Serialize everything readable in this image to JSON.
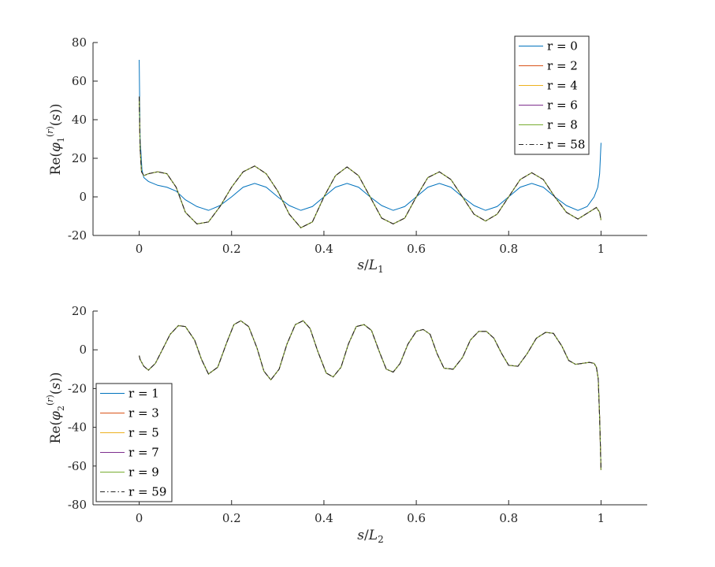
{
  "chart_data": [
    {
      "type": "line",
      "xlabel": "s/L1",
      "ylabel": "Re(φ1(r)(s))",
      "xlim": [
        -0.1,
        1.1
      ],
      "ylim": [
        -20,
        80
      ],
      "xticks": [
        0,
        0.2,
        0.4,
        0.6,
        0.8,
        1
      ],
      "xtick_labels": [
        "0",
        "0.2",
        "0.4",
        "0.6",
        "0.8",
        "1"
      ],
      "yticks": [
        -20,
        0,
        20,
        40,
        60,
        80
      ],
      "ytick_labels": [
        "-20",
        "0",
        "20",
        "40",
        "60",
        "80"
      ],
      "grid": false,
      "legend_position": "top-right",
      "series": [
        {
          "name": "r = 0",
          "color": "#0072BD",
          "dash": "solid",
          "x": [
            0,
            0.002,
            0.006,
            0.01,
            0.02,
            0.04,
            0.06,
            0.08,
            0.1,
            0.125,
            0.15,
            0.175,
            0.2,
            0.225,
            0.25,
            0.275,
            0.3,
            0.325,
            0.35,
            0.375,
            0.4,
            0.425,
            0.45,
            0.475,
            0.5,
            0.525,
            0.55,
            0.575,
            0.6,
            0.625,
            0.65,
            0.675,
            0.7,
            0.725,
            0.75,
            0.775,
            0.8,
            0.825,
            0.85,
            0.875,
            0.9,
            0.925,
            0.95,
            0.97,
            0.985,
            0.993,
            0.997,
            1
          ],
          "y": [
            71,
            30,
            14,
            10,
            8,
            6,
            5,
            3,
            -1.5,
            -5,
            -7,
            -4.5,
            0,
            5,
            7,
            5,
            0,
            -4.5,
            -7,
            -5,
            0,
            5,
            7,
            5,
            0,
            -4.5,
            -7,
            -5,
            0,
            5,
            7,
            5,
            0,
            -4.5,
            -7,
            -5,
            0,
            5,
            7,
            5,
            0,
            -4.5,
            -7,
            -5,
            0,
            5,
            12,
            28
          ]
        },
        {
          "name": "r = 2",
          "color": "#D95319",
          "dash": "solid",
          "ref": "high"
        },
        {
          "name": "r = 4",
          "color": "#EDB120",
          "dash": "solid",
          "ref": "high"
        },
        {
          "name": "r = 6",
          "color": "#7E2F8E",
          "dash": "solid",
          "ref": "high"
        },
        {
          "name": "r = 8",
          "color": "#77AC30",
          "dash": "solid",
          "ref": "high"
        },
        {
          "name": "r = 58",
          "color": "#262626",
          "dash": "dashdot",
          "ref": "high"
        }
      ],
      "high_order_curve": {
        "x": [
          0,
          0.002,
          0.005,
          0.01,
          0.02,
          0.04,
          0.06,
          0.08,
          0.1,
          0.125,
          0.15,
          0.175,
          0.2,
          0.225,
          0.25,
          0.275,
          0.3,
          0.325,
          0.35,
          0.375,
          0.4,
          0.425,
          0.45,
          0.475,
          0.5,
          0.525,
          0.55,
          0.575,
          0.6,
          0.625,
          0.65,
          0.675,
          0.7,
          0.725,
          0.75,
          0.775,
          0.8,
          0.825,
          0.85,
          0.875,
          0.9,
          0.925,
          0.95,
          0.97,
          0.99,
          0.997,
          1
        ],
        "y": [
          52,
          25,
          13,
          11,
          12,
          13,
          12,
          5,
          -8,
          -14,
          -13,
          -5,
          5,
          13,
          16,
          12,
          3,
          -9,
          -16,
          -13,
          0,
          11,
          15.5,
          11,
          0,
          -11,
          -14,
          -11,
          0,
          10,
          13,
          9,
          0,
          -9,
          -12.5,
          -9,
          0,
          9,
          12.5,
          9,
          0,
          -8,
          -11.5,
          -8.5,
          -5.5,
          -8,
          -12
        ]
      }
    },
    {
      "type": "line",
      "xlabel": "s/L2",
      "ylabel": "Re(φ2(r)(s))",
      "xlim": [
        -0.1,
        1.1
      ],
      "ylim": [
        -80,
        20
      ],
      "xticks": [
        0,
        0.2,
        0.4,
        0.6,
        0.8,
        1
      ],
      "xtick_labels": [
        "0",
        "0.2",
        "0.4",
        "0.6",
        "0.8",
        "1"
      ],
      "yticks": [
        -80,
        -60,
        -40,
        -20,
        0,
        20
      ],
      "ytick_labels": [
        "-80",
        "-60",
        "-40",
        "-20",
        "0",
        "20"
      ],
      "grid": false,
      "legend_position": "bottom-left",
      "series": [
        {
          "name": "r = 1",
          "color": "#0072BD",
          "dash": "solid",
          "ref": "main"
        },
        {
          "name": "r = 3",
          "color": "#D95319",
          "dash": "solid",
          "ref": "main"
        },
        {
          "name": "r = 5",
          "color": "#EDB120",
          "dash": "solid",
          "ref": "main"
        },
        {
          "name": "r = 7",
          "color": "#7E2F8E",
          "dash": "solid",
          "ref": "main"
        },
        {
          "name": "r = 9",
          "color": "#77AC30",
          "dash": "solid",
          "ref": "main"
        },
        {
          "name": "r = 59",
          "color": "#262626",
          "dash": "dashdot",
          "ref": "main"
        }
      ],
      "main_curve": {
        "x": [
          0,
          0.002,
          0.01,
          0.02,
          0.035,
          0.05,
          0.067,
          0.085,
          0.1,
          0.12,
          0.135,
          0.15,
          0.17,
          0.19,
          0.205,
          0.22,
          0.237,
          0.255,
          0.27,
          0.285,
          0.303,
          0.32,
          0.338,
          0.355,
          0.37,
          0.387,
          0.405,
          0.42,
          0.437,
          0.453,
          0.47,
          0.487,
          0.503,
          0.52,
          0.535,
          0.55,
          0.565,
          0.582,
          0.6,
          0.615,
          0.63,
          0.645,
          0.66,
          0.68,
          0.7,
          0.717,
          0.735,
          0.752,
          0.768,
          0.785,
          0.8,
          0.82,
          0.84,
          0.86,
          0.88,
          0.897,
          0.915,
          0.93,
          0.945,
          0.96,
          0.975,
          0.985,
          0.99,
          0.994,
          0.997,
          1
        ],
        "y": [
          -3,
          -5,
          -8.5,
          -10.5,
          -7,
          0,
          8,
          12.5,
          12,
          5,
          -5,
          -12.5,
          -9,
          4,
          13,
          15,
          12,
          1,
          -11,
          -15.5,
          -10,
          3,
          13,
          15,
          11,
          -1,
          -12,
          -14,
          -9,
          3,
          12,
          13,
          10,
          -1,
          -10,
          -11.5,
          -7,
          3,
          9.5,
          10.5,
          8,
          -2,
          -9.5,
          -10,
          -4,
          5,
          9.5,
          9.5,
          6,
          -2,
          -8,
          -8.5,
          -2,
          6,
          9,
          8.5,
          2,
          -5.5,
          -7.5,
          -7,
          -6.5,
          -7,
          -9,
          -15,
          -35,
          -62
        ]
      }
    }
  ]
}
